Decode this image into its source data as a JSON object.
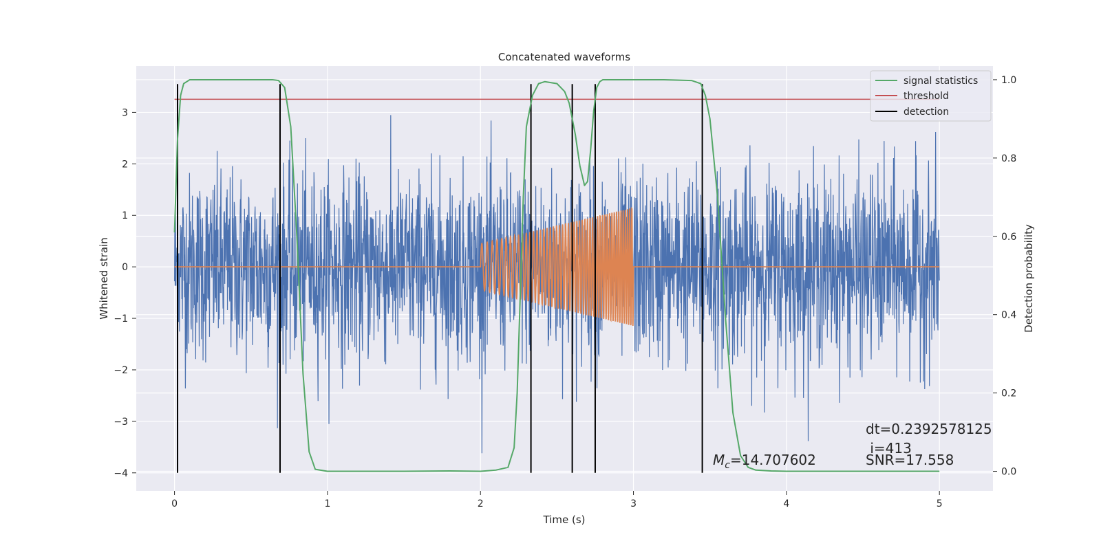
{
  "chart_data": {
    "type": "line",
    "title": "Concatenated waveforms",
    "xlabel": "Time (s)",
    "ylabel": "Whitened strain",
    "y2label": "Detection probability",
    "xlim": [
      -0.25,
      5.35
    ],
    "ylim": [
      -4.35,
      3.9
    ],
    "y2lim": [
      -0.05,
      1.035
    ],
    "xticks": [
      0,
      1,
      2,
      3,
      4,
      5
    ],
    "yticks": [
      -4,
      -3,
      -2,
      -1,
      0,
      1,
      2,
      3
    ],
    "y2ticks": [
      0.0,
      0.2,
      0.4,
      0.6,
      0.8,
      1.0
    ],
    "grid": true,
    "legend_position": "top-right",
    "colors": {
      "strain": "#4c72b0",
      "template": "#dd8452",
      "signal_statistics": "#55a868",
      "threshold": "#c44e52",
      "detection": "#000000",
      "background": "#eaeaf2",
      "grid": "#ffffff"
    },
    "series": [
      {
        "name": "signal statistics",
        "axis": "right",
        "x": [
          0.0,
          0.02,
          0.04,
          0.06,
          0.1,
          0.2,
          0.5,
          0.64,
          0.68,
          0.72,
          0.76,
          0.8,
          0.84,
          0.88,
          0.92,
          1.0,
          1.5,
          1.8,
          2.0,
          2.1,
          2.18,
          2.22,
          2.24,
          2.26,
          2.28,
          2.3,
          2.34,
          2.38,
          2.42,
          2.5,
          2.55,
          2.58,
          2.62,
          2.65,
          2.68,
          2.7,
          2.72,
          2.74,
          2.76,
          2.78,
          2.8,
          2.9,
          3.0,
          3.2,
          3.38,
          3.44,
          3.47,
          3.5,
          3.55,
          3.6,
          3.65,
          3.7,
          3.75,
          3.8,
          3.9,
          4.0,
          4.5,
          5.0
        ],
        "y": [
          0.61,
          0.85,
          0.96,
          0.99,
          1.0,
          1.0,
          1.0,
          1.0,
          0.998,
          0.98,
          0.88,
          0.6,
          0.25,
          0.05,
          0.005,
          0.0,
          0.0,
          0.001,
          0.0,
          0.003,
          0.01,
          0.06,
          0.2,
          0.45,
          0.7,
          0.88,
          0.96,
          0.99,
          0.995,
          0.99,
          0.97,
          0.94,
          0.86,
          0.78,
          0.73,
          0.74,
          0.82,
          0.92,
          0.98,
          0.995,
          1.0,
          1.0,
          1.0,
          1.0,
          0.998,
          0.99,
          0.96,
          0.9,
          0.7,
          0.4,
          0.15,
          0.04,
          0.01,
          0.003,
          0.001,
          0.0,
          0.0,
          0.0
        ]
      },
      {
        "name": "threshold",
        "axis": "right",
        "x": [
          0.0,
          5.0
        ],
        "y": [
          0.95,
          0.95
        ]
      },
      {
        "name": "detection",
        "x": [
          0.02,
          0.69,
          2.33,
          2.6,
          2.75,
          3.45
        ],
        "y_range": [
          -4.0,
          3.55
        ]
      }
    ],
    "strain": {
      "x_range": [
        0.0,
        5.0
      ],
      "noise_amplitude": 0.9,
      "max": 3.55,
      "min": -4.0
    },
    "template": {
      "x_range": [
        2.0,
        3.0
      ],
      "amplitude_start": 0.45,
      "amplitude_end": 1.15,
      "cycles": 50
    },
    "annotations": [
      {
        "text": "dt=0.2392578125",
        "x": 4.5,
        "y": -3.15
      },
      {
        "text": " i=413",
        "x": 4.5,
        "y": -3.53
      },
      {
        "text": "SNR=17.558",
        "x": 4.5,
        "y": -3.75
      },
      {
        "mc_symbol": "M",
        "mc_sub": "c",
        "mc_value": "=14.707602",
        "x": 3.5,
        "y": -3.75
      }
    ]
  }
}
